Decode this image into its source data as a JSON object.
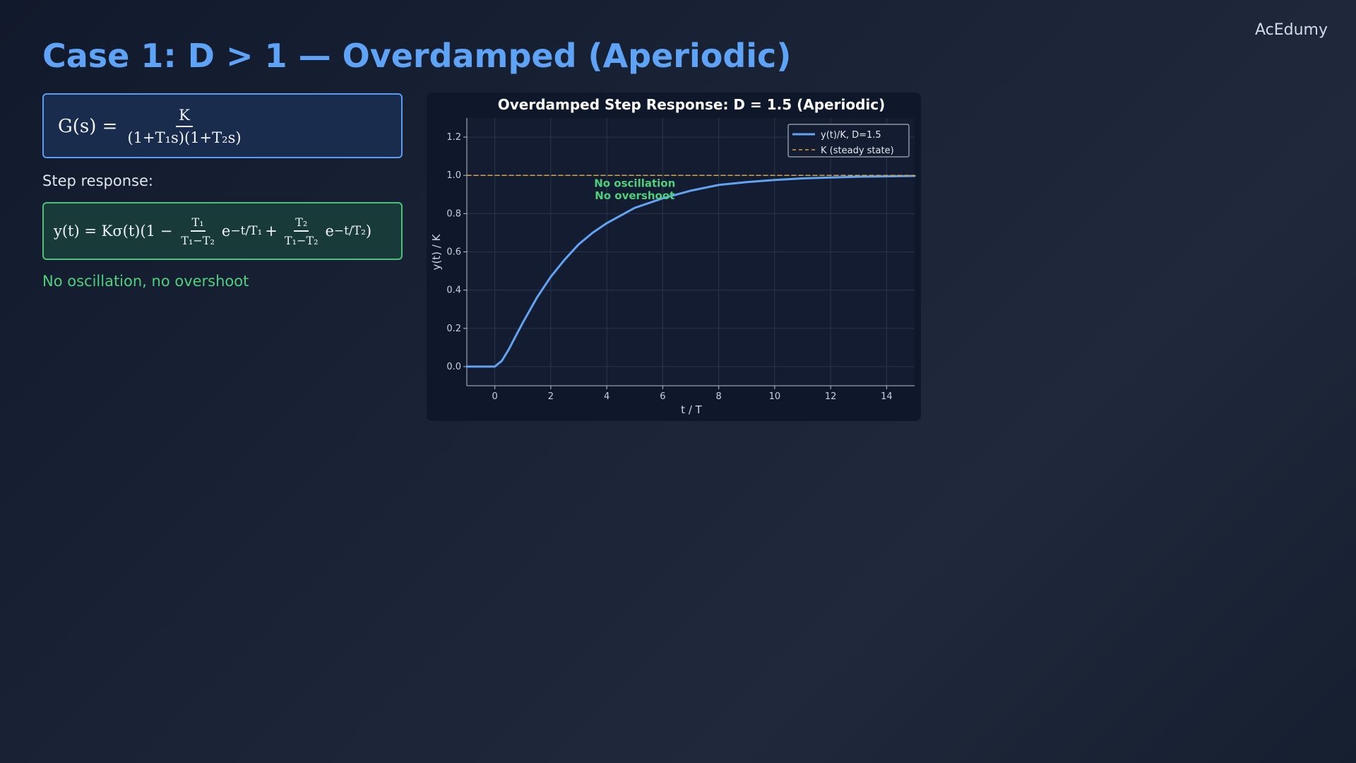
{
  "brand": "AcEdumy",
  "title": "Case 1: D > 1 — Overdamped (Aperiodic)",
  "transfer_function": {
    "lhs": "G(s) =",
    "numerator": "K",
    "denominator": "(1+T₁s)(1+T₂s)"
  },
  "step_label": "Step response:",
  "step_response": {
    "lhs": "y(t) = Kσ(t)(1 −",
    "frac1_num": "T₁",
    "frac1_den": "T₁−T₂",
    "exp1": "e",
    "exp1_sup": "−t/T₁",
    "plus": "+",
    "frac2_num": "T₂",
    "frac2_den": "T₁−T₂",
    "exp2": "e",
    "exp2_sup": "−t/T₂",
    "close": ")"
  },
  "note": "No oscillation, no overshoot",
  "colors": {
    "accent_blue": "#5ea3f5",
    "response_line": "#62a3f2",
    "steady_state": "#d9a441",
    "note_green": "#4fd07c"
  },
  "chart_data": {
    "type": "line",
    "title": "Overdamped Step Response:  D = 1.5  (Aperiodic)",
    "xlabel": "t / T",
    "ylabel": "y(t) / K",
    "xlim": [
      -1,
      15
    ],
    "ylim": [
      -0.1,
      1.3
    ],
    "xticks": [
      0,
      2,
      4,
      6,
      8,
      10,
      12,
      14
    ],
    "yticks": [
      0.0,
      0.2,
      0.4,
      0.6,
      0.8,
      1.0,
      1.2
    ],
    "grid": true,
    "legend_position": "top-right",
    "series": [
      {
        "name": "y(t)/K, D=1.5",
        "style": "solid",
        "color": "#62a3f2",
        "x": [
          -1,
          0,
          0.25,
          0.5,
          0.75,
          1,
          1.5,
          2,
          2.5,
          3,
          3.5,
          4,
          5,
          6,
          7,
          8,
          9,
          10,
          11,
          12,
          13,
          14,
          15
        ],
        "y": [
          0,
          0,
          0.03,
          0.09,
          0.16,
          0.23,
          0.36,
          0.47,
          0.56,
          0.64,
          0.7,
          0.75,
          0.83,
          0.88,
          0.92,
          0.95,
          0.965,
          0.976,
          0.984,
          0.989,
          0.993,
          0.995,
          0.997
        ]
      },
      {
        "name": "K (steady state)",
        "style": "dashed",
        "color": "#d9a441",
        "x": [
          -1,
          15
        ],
        "y": [
          1.0,
          1.0
        ]
      }
    ],
    "annotations": [
      {
        "text": "No oscillation",
        "x": 5.0,
        "y": 0.94
      },
      {
        "text": "No overshoot",
        "x": 5.0,
        "y": 0.875
      }
    ]
  }
}
